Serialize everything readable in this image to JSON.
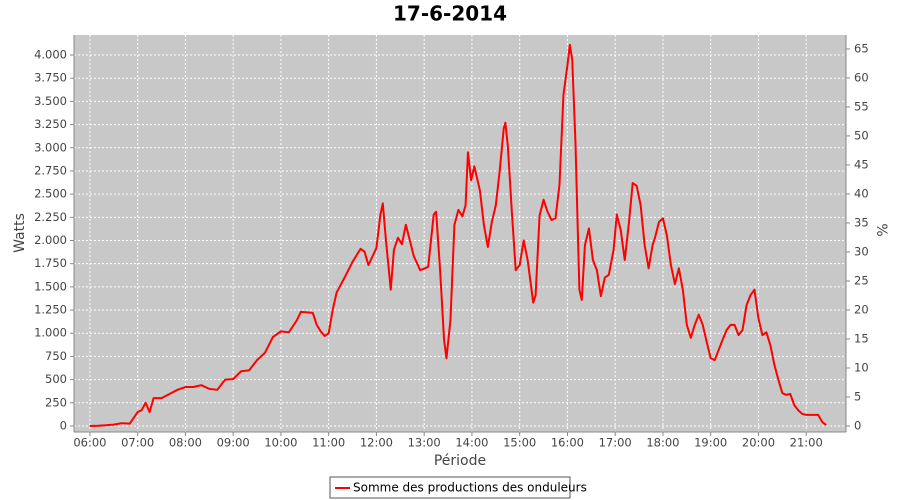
{
  "chart_data": {
    "type": "line",
    "title": "17-6-2014",
    "x_label": "Période",
    "y_label": "Watts",
    "y2_label": "%",
    "x": [
      "06:00",
      "06:10",
      "06:20",
      "06:30",
      "06:40",
      "06:50",
      "07:00",
      "07:05",
      "07:10",
      "07:15",
      "07:20",
      "07:30",
      "07:40",
      "07:50",
      "08:00",
      "08:10",
      "08:20",
      "08:30",
      "08:40",
      "08:50",
      "09:00",
      "09:10",
      "09:20",
      "09:30",
      "09:40",
      "09:50",
      "10:00",
      "10:10",
      "10:20",
      "10:25",
      "10:40",
      "10:45",
      "10:50",
      "10:55",
      "11:00",
      "11:05",
      "11:10",
      "11:20",
      "11:30",
      "11:40",
      "11:45",
      "11:50",
      "12:00",
      "12:05",
      "12:08",
      "12:12",
      "12:18",
      "12:22",
      "12:27",
      "12:32",
      "12:37",
      "12:42",
      "12:47",
      "12:55",
      "13:05",
      "13:12",
      "13:15",
      "13:20",
      "13:25",
      "13:28",
      "13:33",
      "13:38",
      "13:43",
      "13:48",
      "13:52",
      "13:55",
      "13:59",
      "14:03",
      "14:10",
      "14:15",
      "14:20",
      "14:25",
      "14:30",
      "14:35",
      "14:40",
      "14:42",
      "14:45",
      "14:50",
      "14:55",
      "15:00",
      "15:05",
      "15:10",
      "15:17",
      "15:20",
      "15:25",
      "15:30",
      "15:35",
      "15:40",
      "15:45",
      "15:50",
      "15:55",
      "16:00",
      "16:03",
      "16:06",
      "16:10",
      "16:15",
      "16:18",
      "16:22",
      "16:27",
      "16:32",
      "16:37",
      "16:42",
      "16:47",
      "16:52",
      "16:58",
      "17:02",
      "17:07",
      "17:12",
      "17:17",
      "17:22",
      "17:27",
      "17:32",
      "17:37",
      "17:42",
      "17:47",
      "17:50",
      "17:55",
      "18:00",
      "18:05",
      "18:10",
      "18:15",
      "18:20",
      "18:25",
      "18:30",
      "18:35",
      "18:40",
      "18:45",
      "18:50",
      "18:55",
      "19:00",
      "19:05",
      "19:10",
      "19:15",
      "19:20",
      "19:25",
      "19:30",
      "19:35",
      "19:40",
      "19:45",
      "19:50",
      "19:55",
      "20:00",
      "20:05",
      "20:10",
      "20:15",
      "20:20",
      "20:25",
      "20:30",
      "20:35",
      "20:40",
      "20:45",
      "20:50",
      "20:55",
      "21:00",
      "21:15",
      "21:20",
      "21:25"
    ],
    "series": [
      {
        "name": "Somme des productions des onduleurs",
        "color": "#ff0000",
        "values": [
          0,
          3,
          8,
          15,
          30,
          25,
          150,
          170,
          250,
          150,
          300,
          300,
          345,
          390,
          420,
          420,
          440,
          400,
          390,
          500,
          505,
          590,
          600,
          710,
          790,
          960,
          1020,
          1010,
          1140,
          1230,
          1220,
          1090,
          1020,
          970,
          1000,
          1250,
          1440,
          1600,
          1770,
          1910,
          1880,
          1735,
          1920,
          2280,
          2400,
          2000,
          1470,
          1900,
          2030,
          1960,
          2170,
          2000,
          1830,
          1680,
          1715,
          2280,
          2310,
          1680,
          930,
          730,
          1140,
          2170,
          2330,
          2260,
          2380,
          2950,
          2650,
          2800,
          2540,
          2170,
          1930,
          2200,
          2380,
          2760,
          3210,
          3270,
          3030,
          2330,
          1680,
          1735,
          2000,
          1790,
          1330,
          1410,
          2270,
          2440,
          2310,
          2220,
          2240,
          2600,
          3570,
          3890,
          4110,
          3950,
          3080,
          1470,
          1360,
          1950,
          2130,
          1790,
          1680,
          1400,
          1600,
          1630,
          1900,
          2280,
          2110,
          1790,
          2170,
          2620,
          2590,
          2380,
          1950,
          1700,
          1950,
          2030,
          2200,
          2240,
          2050,
          1735,
          1530,
          1700,
          1470,
          1090,
          950,
          1090,
          1200,
          1090,
          905,
          730,
          710,
          820,
          930,
          1035,
          1090,
          1090,
          980,
          1035,
          1300,
          1410,
          1470,
          1160,
          980,
          1010,
          870,
          660,
          500,
          355,
          335,
          345,
          225,
          170,
          130,
          120,
          120,
          45,
          10
        ]
      }
    ],
    "xlim": [
      "05:40",
      "21:50"
    ],
    "xticks": [
      "06:00",
      "07:00",
      "08:00",
      "09:00",
      "10:00",
      "11:00",
      "12:00",
      "13:00",
      "14:00",
      "15:00",
      "16:00",
      "17:00",
      "18:00",
      "19:00",
      "20:00",
      "21:00"
    ],
    "ylim": [
      -65,
      4216
    ],
    "yticks": [
      0,
      250,
      500,
      750,
      {
        "value": 1000,
        "label": "1.000"
      },
      {
        "value": 1250,
        "label": "1.250"
      },
      {
        "value": 1500,
        "label": "1.500"
      },
      {
        "value": 1750,
        "label": "1.750"
      },
      {
        "value": 2000,
        "label": "2.000"
      },
      {
        "value": 2250,
        "label": "2.250"
      },
      {
        "value": 2500,
        "label": "2.500"
      },
      {
        "value": 2750,
        "label": "2.750"
      },
      {
        "value": 3000,
        "label": "3.000"
      },
      {
        "value": 3250,
        "label": "3.250"
      },
      {
        "value": 3500,
        "label": "3.500"
      },
      {
        "value": 3750,
        "label": "3.750"
      },
      {
        "value": 4000,
        "label": "4.000"
      }
    ],
    "y2lim": [
      -1.03,
      67.4
    ],
    "y2ticks": [
      0,
      5,
      10,
      15,
      20,
      25,
      30,
      35,
      40,
      45,
      50,
      55,
      60,
      65
    ],
    "grid": true,
    "legend": "bottom"
  }
}
